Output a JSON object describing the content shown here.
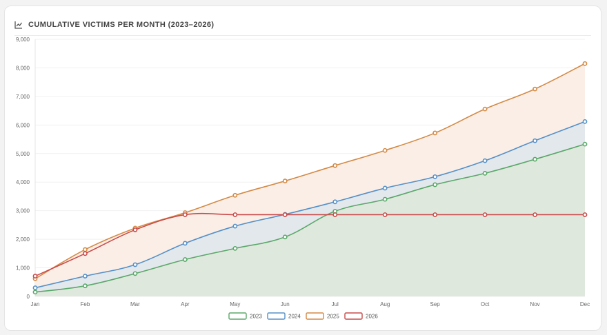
{
  "header": {
    "title": "CUMULATIVE VICTIMS PER MONTH (2023–2026)",
    "icon": "line-chart-icon"
  },
  "chart_data": {
    "type": "area",
    "title": "CUMULATIVE VICTIMS PER MONTH (2023–2026)",
    "categories": [
      "Jan",
      "Feb",
      "Mar",
      "Apr",
      "May",
      "Jun",
      "Jul",
      "Aug",
      "Sep",
      "Oct",
      "Nov",
      "Dec"
    ],
    "ylim": [
      0,
      9000
    ],
    "yticks": [
      0,
      1000,
      2000,
      3000,
      4000,
      5000,
      6000,
      7000,
      8000,
      9000
    ],
    "ytick_labels": [
      "0",
      "1,000",
      "2,000",
      "3,000",
      "4,000",
      "5,000",
      "6,000",
      "7,000",
      "8,000",
      "9,000"
    ],
    "grid": true,
    "legend_position": "bottom",
    "series": [
      {
        "name": "2023",
        "color": "#5aa86a",
        "fill": "#dfe8dc",
        "values": [
          150,
          370,
          800,
          1290,
          1680,
          2080,
          2980,
          3400,
          3910,
          4310,
          4800,
          5330
        ]
      },
      {
        "name": "2024",
        "color": "#5590c7",
        "fill": "#e3e8ec",
        "values": [
          300,
          710,
          1110,
          1860,
          2460,
          2870,
          3310,
          3790,
          4190,
          4750,
          5450,
          6120
        ]
      },
      {
        "name": "2025",
        "color": "#d38a45",
        "fill": "#fbeee6",
        "values": [
          620,
          1640,
          2390,
          2930,
          3540,
          4040,
          4580,
          5110,
          5720,
          6560,
          7260,
          8150
        ]
      },
      {
        "name": "2026",
        "color": "#c94a4a",
        "fill": "none",
        "values": [
          710,
          1500,
          2330,
          2860,
          2860,
          2860,
          2860,
          2860,
          2860,
          2860,
          2860,
          2860
        ]
      }
    ]
  }
}
